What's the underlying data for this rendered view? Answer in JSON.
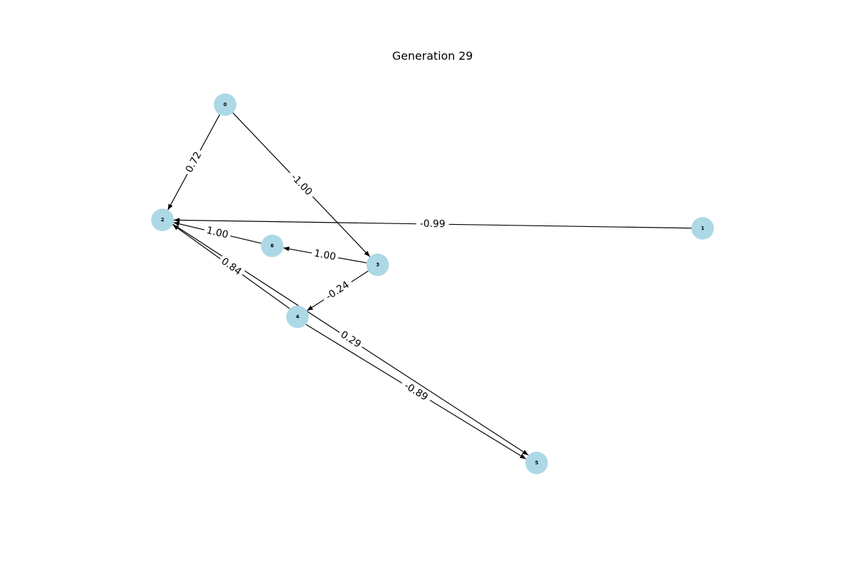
{
  "title": "Generation 29",
  "colors": {
    "node_fill": "#add8e6",
    "edge": "#000000",
    "text": "#000000"
  },
  "graph": {
    "directed": true,
    "nodes": [
      {
        "id": "0",
        "label": "0"
      },
      {
        "id": "1",
        "label": "1"
      },
      {
        "id": "2",
        "label": "2"
      },
      {
        "id": "3",
        "label": "3"
      },
      {
        "id": "4",
        "label": "4"
      },
      {
        "id": "5",
        "label": "5"
      },
      {
        "id": "6",
        "label": "6"
      }
    ],
    "edges": [
      {
        "source": "0",
        "target": "2",
        "weight": "0.72"
      },
      {
        "source": "0",
        "target": "3",
        "weight": "-1.00"
      },
      {
        "source": "1",
        "target": "2",
        "weight": "-0.99"
      },
      {
        "source": "6",
        "target": "2",
        "weight": "1.00"
      },
      {
        "source": "3",
        "target": "6",
        "weight": "1.00"
      },
      {
        "source": "3",
        "target": "4",
        "weight": "-0.24"
      },
      {
        "source": "4",
        "target": "2",
        "weight": "0.84"
      },
      {
        "source": "4",
        "target": "5",
        "weight": "-0.89"
      },
      {
        "source": "2",
        "target": "5",
        "weight": "0.29"
      }
    ]
  }
}
